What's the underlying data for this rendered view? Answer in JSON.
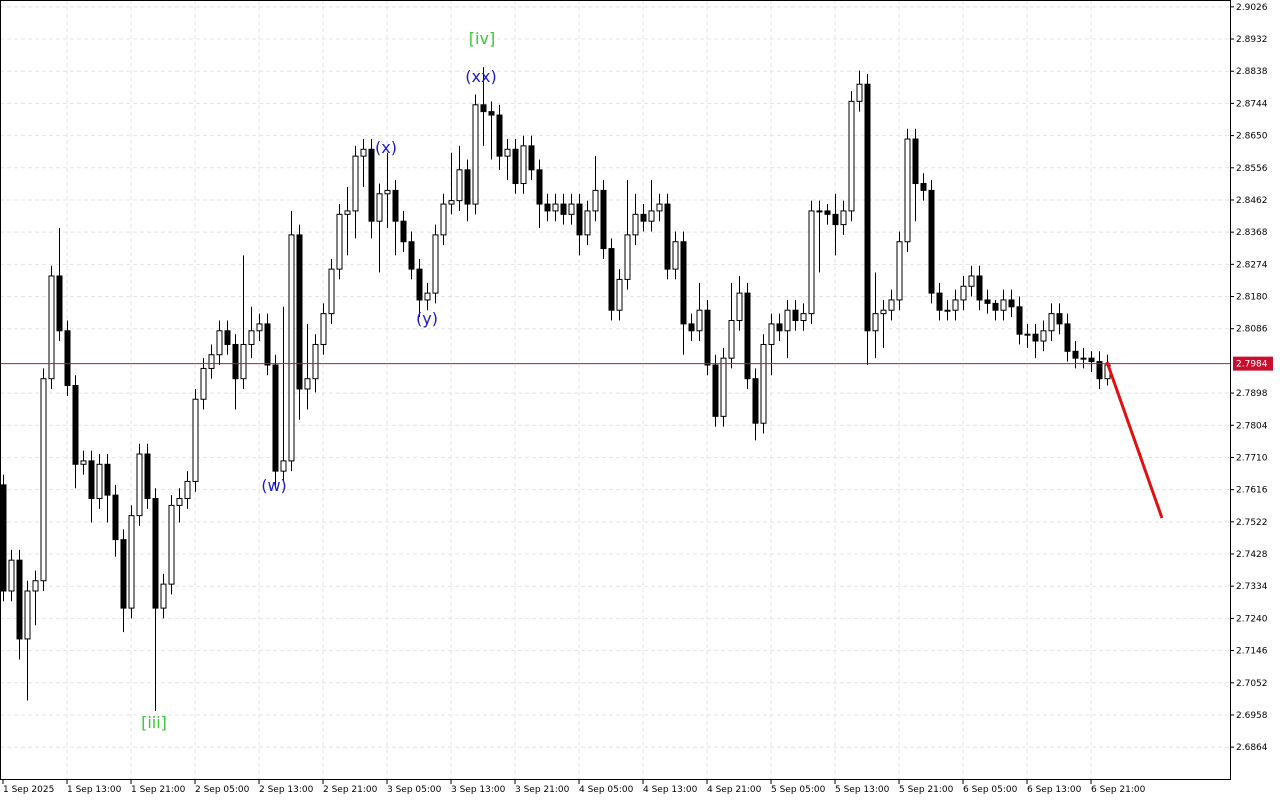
{
  "chart_data": {
    "type": "candlestick",
    "categories": [
      "1 Sep 2025",
      null,
      null,
      null,
      null,
      null,
      null,
      null,
      "1 Sep 13:00",
      null,
      null,
      null,
      null,
      null,
      null,
      null,
      "1 Sep 21:00",
      null,
      null,
      null,
      null,
      null,
      null,
      null,
      "2 Sep 05:00",
      null,
      null,
      null,
      null,
      null,
      null,
      null,
      "2 Sep 13:00",
      null,
      null,
      null,
      null,
      null,
      null,
      null,
      "2 Sep 21:00",
      null,
      null,
      null,
      null,
      null,
      null,
      null,
      "3 Sep 05:00",
      null,
      null,
      null,
      null,
      null,
      null,
      null,
      "3 Sep 13:00",
      null,
      null,
      null,
      null,
      null,
      null,
      null,
      "3 Sep 21:00",
      null,
      null,
      null,
      null,
      null,
      null,
      null,
      "4 Sep 05:00",
      null,
      null,
      null,
      null,
      null,
      null,
      null,
      "4 Sep 13:00",
      null,
      null,
      null,
      null,
      null,
      null,
      null,
      "4 Sep 21:00",
      null,
      null,
      null,
      null,
      null,
      null,
      null,
      "5 Sep 05:00",
      null,
      null,
      null,
      null,
      null,
      null,
      null,
      "5 Sep 13:00",
      null,
      null,
      null,
      null,
      null,
      null,
      null,
      "5 Sep 21:00",
      null,
      null,
      null,
      null,
      null,
      null,
      null,
      "6 Sep 05:00",
      null,
      null,
      null,
      null,
      null,
      null,
      null,
      "6 Sep 13:00",
      null,
      null,
      null,
      null,
      null,
      null,
      null,
      "6 Sep 21:00",
      null,
      null
    ],
    "open": [
      2.763,
      2.732,
      2.741,
      2.718,
      2.732,
      2.735,
      2.794,
      2.824,
      2.808,
      2.792,
      2.769,
      2.77,
      2.759,
      2.769,
      2.76,
      2.747,
      2.727,
      2.754,
      2.772,
      2.759,
      2.727,
      2.734,
      2.757,
      2.759,
      2.764,
      2.788,
      2.797,
      2.801,
      2.808,
      2.804,
      2.794,
      2.804,
      2.808,
      2.81,
      2.798,
      2.767,
      2.77,
      2.836,
      2.791,
      2.794,
      2.804,
      2.813,
      2.826,
      2.842,
      2.843,
      2.859,
      2.861,
      2.84,
      2.848,
      2.849,
      2.84,
      2.834,
      2.826,
      2.817,
      2.819,
      2.836,
      2.845,
      2.846,
      2.855,
      2.845,
      2.874,
      2.872,
      2.871,
      2.859,
      2.861,
      2.851,
      2.862,
      2.855,
      2.845,
      2.843,
      2.845,
      2.842,
      2.845,
      2.836,
      2.843,
      2.849,
      2.832,
      2.814,
      2.823,
      2.836,
      2.842,
      2.84,
      2.843,
      2.845,
      2.826,
      2.834,
      2.81,
      2.808,
      2.814,
      2.798,
      2.783,
      2.8,
      2.811,
      2.819,
      2.794,
      2.781,
      2.804,
      2.81,
      2.808,
      2.814,
      2.811,
      2.813,
      2.843,
      2.843,
      2.842,
      2.839,
      2.843,
      2.875,
      2.88,
      2.808,
      2.813,
      2.814,
      2.817,
      2.834,
      2.864,
      2.851,
      2.849,
      2.819,
      2.814,
      2.814,
      2.817,
      2.821,
      2.824,
      2.817,
      2.816,
      2.814,
      2.817,
      2.815,
      2.807,
      2.807,
      2.805,
      2.808,
      2.813,
      2.81,
      2.802,
      2.8,
      2.8,
      2.799,
      2.794
    ],
    "high": [
      2.766,
      2.744,
      2.744,
      2.735,
      2.738,
      2.797,
      2.827,
      2.838,
      2.811,
      2.795,
      2.773,
      2.773,
      2.772,
      2.772,
      2.763,
      2.75,
      2.757,
      2.775,
      2.775,
      2.762,
      2.737,
      2.76,
      2.762,
      2.767,
      2.791,
      2.8,
      2.804,
      2.811,
      2.811,
      2.807,
      2.83,
      2.815,
      2.813,
      2.813,
      2.801,
      2.815,
      2.843,
      2.839,
      2.81,
      2.807,
      2.816,
      2.829,
      2.845,
      2.85,
      2.862,
      2.864,
      2.864,
      2.851,
      2.86,
      2.852,
      2.843,
      2.837,
      2.829,
      2.822,
      2.839,
      2.848,
      2.86,
      2.862,
      2.858,
      2.877,
      2.885,
      2.875,
      2.874,
      2.864,
      2.864,
      2.865,
      2.865,
      2.858,
      2.848,
      2.848,
      2.848,
      2.848,
      2.848,
      2.846,
      2.859,
      2.852,
      2.835,
      2.826,
      2.852,
      2.848,
      2.845,
      2.852,
      2.848,
      2.848,
      2.837,
      2.837,
      2.813,
      2.822,
      2.817,
      2.801,
      2.803,
      2.822,
      2.824,
      2.822,
      2.797,
      2.807,
      2.813,
      2.813,
      2.817,
      2.817,
      2.816,
      2.846,
      2.846,
      2.845,
      2.848,
      2.846,
      2.878,
      2.884,
      2.883,
      2.825,
      2.817,
      2.82,
      2.837,
      2.867,
      2.867,
      2.854,
      2.852,
      2.822,
      2.817,
      2.82,
      2.824,
      2.827,
      2.827,
      2.82,
      2.817,
      2.82,
      2.82,
      2.818,
      2.81,
      2.81,
      2.811,
      2.816,
      2.816,
      2.813,
      2.805,
      2.803,
      2.802,
      2.802,
      2.801
    ],
    "low": [
      2.729,
      2.729,
      2.712,
      2.7,
      2.722,
      2.732,
      2.791,
      2.805,
      2.789,
      2.762,
      2.766,
      2.752,
      2.756,
      2.752,
      2.742,
      2.72,
      2.724,
      2.751,
      2.756,
      2.697,
      2.724,
      2.731,
      2.752,
      2.756,
      2.761,
      2.785,
      2.794,
      2.798,
      2.801,
      2.785,
      2.791,
      2.8,
      2.805,
      2.795,
      2.762,
      2.764,
      2.767,
      2.782,
      2.785,
      2.79,
      2.801,
      2.81,
      2.823,
      2.83,
      2.835,
      2.85,
      2.835,
      2.825,
      2.838,
      2.83,
      2.831,
      2.823,
      2.812,
      2.814,
      2.816,
      2.833,
      2.842,
      2.843,
      2.84,
      2.842,
      2.862,
      2.858,
      2.855,
      2.852,
      2.848,
      2.848,
      2.852,
      2.838,
      2.84,
      2.84,
      2.839,
      2.839,
      2.83,
      2.833,
      2.84,
      2.829,
      2.811,
      2.811,
      2.82,
      2.833,
      2.837,
      2.837,
      2.84,
      2.823,
      2.823,
      2.801,
      2.805,
      2.805,
      2.795,
      2.78,
      2.78,
      2.797,
      2.808,
      2.791,
      2.776,
      2.778,
      2.795,
      2.805,
      2.8,
      2.808,
      2.808,
      2.81,
      2.825,
      2.839,
      2.83,
      2.836,
      2.84,
      2.872,
      2.798,
      2.8,
      2.803,
      2.811,
      2.814,
      2.831,
      2.84,
      2.846,
      2.816,
      2.811,
      2.811,
      2.811,
      2.814,
      2.818,
      2.814,
      2.813,
      2.811,
      2.811,
      2.812,
      2.804,
      2.803,
      2.8,
      2.802,
      2.805,
      2.807,
      2.799,
      2.797,
      2.797,
      2.796,
      2.791,
      2.792
    ],
    "close": [
      2.732,
      2.741,
      2.718,
      2.732,
      2.735,
      2.794,
      2.824,
      2.808,
      2.792,
      2.769,
      2.77,
      2.759,
      2.769,
      2.76,
      2.747,
      2.727,
      2.754,
      2.772,
      2.759,
      2.727,
      2.734,
      2.757,
      2.759,
      2.764,
      2.788,
      2.797,
      2.801,
      2.808,
      2.804,
      2.794,
      2.804,
      2.808,
      2.81,
      2.798,
      2.767,
      2.77,
      2.836,
      2.791,
      2.794,
      2.804,
      2.813,
      2.826,
      2.842,
      2.843,
      2.859,
      2.861,
      2.84,
      2.848,
      2.849,
      2.84,
      2.834,
      2.826,
      2.817,
      2.819,
      2.836,
      2.845,
      2.846,
      2.855,
      2.845,
      2.874,
      2.872,
      2.871,
      2.859,
      2.861,
      2.851,
      2.862,
      2.855,
      2.845,
      2.843,
      2.845,
      2.842,
      2.845,
      2.836,
      2.843,
      2.849,
      2.832,
      2.814,
      2.823,
      2.836,
      2.842,
      2.84,
      2.843,
      2.845,
      2.826,
      2.834,
      2.81,
      2.808,
      2.814,
      2.798,
      2.783,
      2.8,
      2.811,
      2.819,
      2.794,
      2.781,
      2.804,
      2.81,
      2.808,
      2.814,
      2.811,
      2.813,
      2.843,
      2.843,
      2.842,
      2.839,
      2.843,
      2.875,
      2.88,
      2.808,
      2.813,
      2.814,
      2.817,
      2.834,
      2.864,
      2.851,
      2.849,
      2.819,
      2.814,
      2.814,
      2.817,
      2.821,
      2.824,
      2.817,
      2.816,
      2.814,
      2.817,
      2.815,
      2.807,
      2.807,
      2.805,
      2.808,
      2.813,
      2.81,
      2.802,
      2.8,
      2.8,
      2.799,
      2.794,
      2.798
    ],
    "up_color": "#ffffff",
    "down_color": "#000000",
    "ylim": [
      2.6768,
      2.9046
    ],
    "yticks": [
      2.9026,
      2.8932,
      2.8838,
      2.8744,
      {
        "value": 2.865,
        "label": "2.8650"
      },
      2.8556,
      2.8462,
      2.8368,
      2.8274,
      {
        "value": 2.818,
        "label": "2.8180"
      },
      2.8086,
      2.7898,
      2.7804,
      {
        "value": 2.771,
        "label": "2.7710"
      },
      2.7616,
      2.7522,
      2.7428,
      2.7334,
      {
        "value": 2.724,
        "label": "2.7240"
      },
      2.7146,
      2.7052,
      2.6958,
      2.6864
    ],
    "grid": true,
    "current_price": 2.7984,
    "current_price_color": "#c8102e",
    "annotations": [
      {
        "text": "[iii]",
        "color": "#33cc33"
      },
      {
        "text": "(w)",
        "color": "#1a1acc"
      },
      {
        "text": "(x)",
        "color": "#1a1acc"
      },
      {
        "text": "(y)",
        "color": "#1a1acc"
      },
      {
        "text": "[iv]",
        "color": "#33cc33"
      },
      {
        "text": "(xx)",
        "color": "#1a1acc"
      }
    ]
  }
}
